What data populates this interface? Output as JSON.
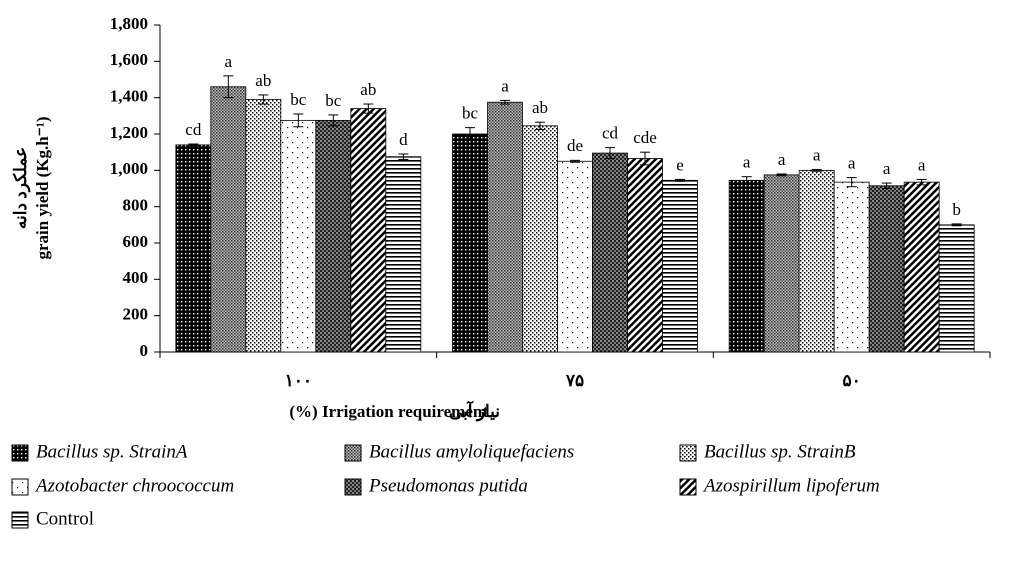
{
  "chart_data": {
    "type": "bar",
    "ylabel_fa": "عملکرد دانه",
    "ylabel": "grain yield (Kg.h⁻¹)",
    "xlabel_fa": "نیاز آبی",
    "xlabel": "(%) Irrigation requirement",
    "categories": [
      "۱۰۰",
      "۷۵",
      "۵۰"
    ],
    "ylim": [
      0,
      1800
    ],
    "yticks": [
      0,
      200,
      400,
      600,
      800,
      {
        "value": 1000,
        "label": "1,000"
      },
      {
        "value": 1200,
        "label": "1,200"
      },
      {
        "value": 1400,
        "label": "1,400"
      },
      {
        "value": 1600,
        "label": "1,600"
      },
      {
        "value": 1800,
        "label": "1,800"
      }
    ],
    "series": [
      {
        "name": "Bacillus sp. StrainA",
        "italic": true,
        "pattern": "black-dots",
        "values": [
          1140,
          1200,
          945
        ],
        "errors": [
          5,
          35,
          20
        ],
        "letters": [
          "cd",
          "bc",
          "a"
        ]
      },
      {
        "name": "Bacillus amyloliquefaciens",
        "italic": true,
        "pattern": "gray-hatch",
        "values": [
          1460,
          1375,
          975
        ],
        "errors": [
          60,
          10,
          5
        ],
        "letters": [
          "a",
          "a",
          "a"
        ]
      },
      {
        "name": "Bacillus sp. StrainB",
        "italic": true,
        "pattern": "fine-dots",
        "values": [
          1390,
          1245,
          1000
        ],
        "errors": [
          25,
          20,
          5
        ],
        "letters": [
          "ab",
          "ab",
          "a"
        ]
      },
      {
        "name": "Azotobacter chroococcum",
        "italic": true,
        "pattern": "sparse-dots",
        "values": [
          1275,
          1050,
          935
        ],
        "errors": [
          35,
          5,
          25
        ],
        "letters": [
          "bc",
          "de",
          "a"
        ]
      },
      {
        "name": "Pseudomonas putida",
        "italic": true,
        "pattern": "checker",
        "values": [
          1275,
          1095,
          915
        ],
        "errors": [
          30,
          30,
          15
        ],
        "letters": [
          "bc",
          "cd",
          "a"
        ]
      },
      {
        "name": "Azospirillum lipoferum",
        "italic": true,
        "pattern": "diagonal",
        "values": [
          1340,
          1065,
          935
        ],
        "errors": [
          25,
          35,
          15
        ],
        "letters": [
          "ab",
          "cde",
          "a"
        ]
      },
      {
        "name": "Control",
        "italic": false,
        "pattern": "horizontal",
        "values": [
          1075,
          945,
          700
        ],
        "errors": [
          15,
          5,
          5
        ],
        "letters": [
          "d",
          "e",
          "b"
        ]
      }
    ]
  }
}
